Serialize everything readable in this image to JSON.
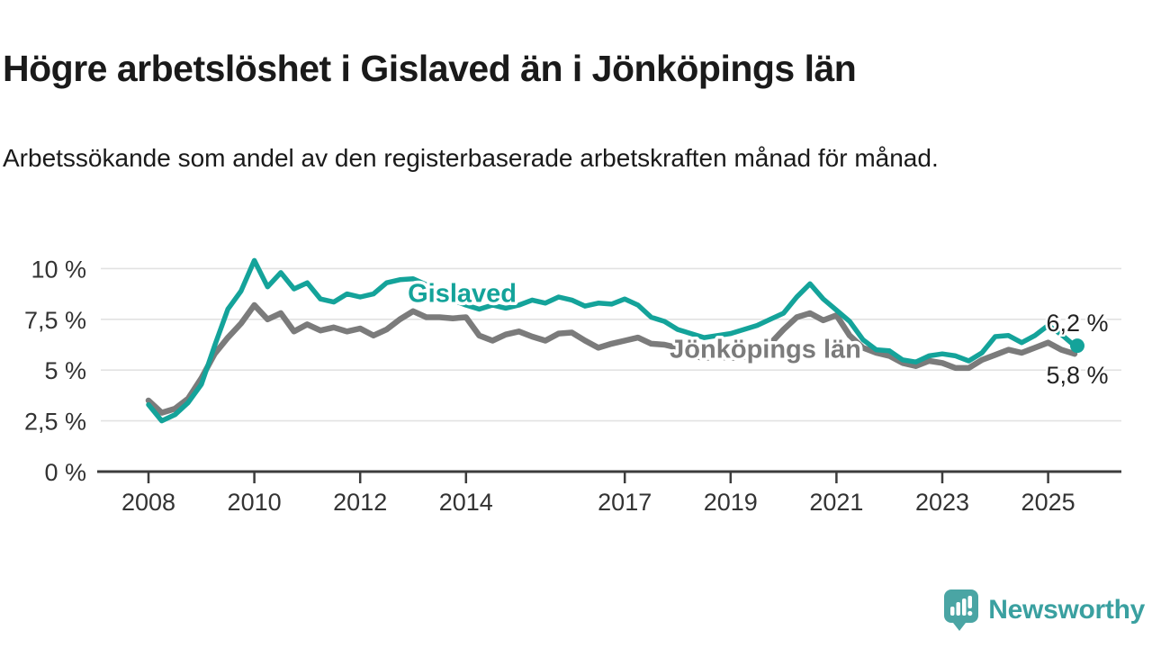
{
  "header": {
    "title": "Högre arbetslöshet i Gislaved än i Jönköpings län",
    "subtitle": "Arbetssökande som andel av den registerbaserade arbetskraften månad för månad."
  },
  "branding": {
    "logo_text": "Newsworthy",
    "logo_icon": "newsworthy-speech-bubble-bar-chart-icon",
    "logo_color": "#4aa5a4",
    "logo_text_color": "#3aa0a0"
  },
  "chart_data": {
    "type": "line",
    "title": "Högre arbetslöshet i Gislaved än i Jönköpings län",
    "subtitle": "Arbetssökande som andel av den registerbaserade arbetskraften månad för månad.",
    "unit": "%",
    "grid": true,
    "x_start": 2008,
    "x_step_years": 0.25,
    "x_axis": {
      "ticks": [
        2008,
        2010,
        2012,
        2014,
        2017,
        2019,
        2021,
        2023,
        2025
      ],
      "tick_labels": [
        "2008",
        "2010",
        "2012",
        "2014",
        "2017",
        "2019",
        "2021",
        "2023",
        "2025"
      ],
      "range": [
        2007.05,
        2026.4
      ]
    },
    "y_axis": {
      "ticks": [
        {
          "value": 0,
          "label": "0 %"
        },
        {
          "value": 2.5,
          "label": "2,5 %"
        },
        {
          "value": 5,
          "label": "5 %"
        },
        {
          "value": 7.5,
          "label": "7,5 %"
        },
        {
          "value": 10,
          "label": "10 %"
        }
      ],
      "gridline_values": [
        2.5,
        5,
        7.5,
        10
      ],
      "range": [
        0,
        11
      ]
    },
    "series": [
      {
        "name": "Jönköpings län",
        "color": "#7b7b7b",
        "line_width": 6.5,
        "end_dot": false,
        "end_label": "5,8 %",
        "end_value": 5.8,
        "end_label_position": "below",
        "label": {
          "text": "Jönköpings län",
          "x": 2017.85,
          "y": 5.6
        },
        "values": [
          3.5,
          2.9,
          3.1,
          3.6,
          4.6,
          5.8,
          6.6,
          7.3,
          8.2,
          7.5,
          7.8,
          6.9,
          7.25,
          6.95,
          7.1,
          6.9,
          7.05,
          6.7,
          7.0,
          7.5,
          7.9,
          7.6,
          7.6,
          7.55,
          7.6,
          6.7,
          6.45,
          6.75,
          6.9,
          6.65,
          6.45,
          6.8,
          6.85,
          6.45,
          6.1,
          6.3,
          6.45,
          6.6,
          6.3,
          6.25,
          6.1,
          5.7,
          5.6,
          5.65,
          5.6,
          5.65,
          5.8,
          6.3,
          7.0,
          7.6,
          7.8,
          7.45,
          7.7,
          6.7,
          6.1,
          5.85,
          5.7,
          5.35,
          5.2,
          5.45,
          5.35,
          5.1,
          5.1,
          5.5,
          5.75,
          6.0,
          5.85,
          6.1,
          6.35,
          6.0,
          5.8
        ]
      },
      {
        "name": "Gislaved",
        "color": "#14a39a",
        "line_width": 5.5,
        "end_dot": true,
        "end_label": "6,2 %",
        "end_value": 6.2,
        "end_label_position": "above",
        "label": {
          "text": "Gislaved",
          "x": 2012.9,
          "y": 8.35
        },
        "values": [
          3.3,
          2.5,
          2.8,
          3.4,
          4.3,
          6.2,
          8.0,
          8.9,
          10.4,
          9.1,
          9.8,
          9.0,
          9.3,
          8.5,
          8.35,
          8.75,
          8.6,
          8.75,
          9.3,
          9.45,
          9.5,
          9.2,
          8.8,
          8.45,
          8.2,
          8.0,
          8.2,
          8.05,
          8.2,
          8.45,
          8.3,
          8.6,
          8.45,
          8.15,
          8.3,
          8.25,
          8.5,
          8.2,
          7.6,
          7.4,
          7.0,
          6.8,
          6.6,
          6.7,
          6.8,
          7.0,
          7.2,
          7.5,
          7.8,
          8.6,
          9.25,
          8.5,
          7.95,
          7.4,
          6.5,
          6.0,
          5.95,
          5.5,
          5.4,
          5.7,
          5.8,
          5.7,
          5.45,
          5.85,
          6.65,
          6.7,
          6.35,
          6.7,
          7.2,
          6.75,
          6.2
        ]
      }
    ],
    "annotations": [
      {
        "text": "6,2 %",
        "series": "Gislaved"
      },
      {
        "text": "5,8 %",
        "series": "Jönköpings län"
      }
    ],
    "legend_position": "inline-line-labels"
  }
}
